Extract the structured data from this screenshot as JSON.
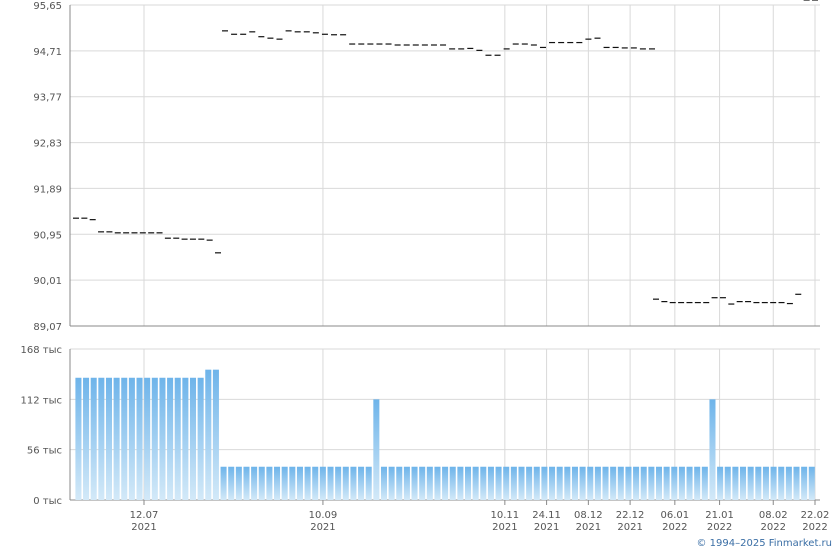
{
  "footer": "© 1994–2025 Finmarket.ru",
  "colors": {
    "price": "#111111",
    "volume_top": "#6eb4ea",
    "volume_bottom": "#d3e9f8",
    "grid": "#d9d9d9",
    "axis": "#888888"
  },
  "chart_data": [
    {
      "type": "line",
      "title": "",
      "x_ticks": [
        {
          "date": "2021-07-12",
          "label": [
            "12.07",
            "2021"
          ]
        },
        {
          "date": "2021-09-10",
          "label": [
            "10.09",
            "2021"
          ]
        },
        {
          "date": "2021-11-10",
          "label": [
            "10.11",
            "2021"
          ]
        },
        {
          "date": "2021-11-24",
          "label": [
            "24.11",
            "2021"
          ]
        },
        {
          "date": "2021-12-08",
          "label": [
            "08.12",
            "2021"
          ]
        },
        {
          "date": "2021-12-22",
          "label": [
            "22.12",
            "2021"
          ]
        },
        {
          "date": "2022-01-06",
          "label": [
            "06.01",
            "2022"
          ]
        },
        {
          "date": "2022-01-21",
          "label": [
            "21.01",
            "2022"
          ]
        },
        {
          "date": "2022-02-08",
          "label": [
            "08.02",
            "2022"
          ]
        },
        {
          "date": "2022-02-22",
          "label": [
            "22.02",
            "2022"
          ]
        }
      ],
      "y_ticks": [
        "95,65",
        "94,71",
        "93,77",
        "92,83",
        "91,89",
        "90,95",
        "90,01",
        "89,07"
      ],
      "ylim": [
        89.07,
        95.65
      ],
      "y_tick_values": [
        95.65,
        94.71,
        93.77,
        92.83,
        91.89,
        90.95,
        90.01,
        89.07
      ],
      "grid": true,
      "series": [
        {
          "values": [
            91.28,
            91.28,
            91.25,
            91.0,
            91.0,
            90.98,
            90.98,
            90.98,
            90.98,
            90.98,
            90.98,
            90.87,
            90.87,
            90.85,
            90.85,
            90.85,
            90.83,
            90.57,
            95.12,
            95.05,
            95.05,
            95.1,
            95.0,
            94.97,
            94.95,
            95.12,
            95.1,
            95.1,
            95.08,
            95.05,
            95.04,
            95.04,
            94.85,
            94.85,
            94.85,
            94.85,
            94.85,
            94.83,
            94.83,
            94.83,
            94.83,
            94.83,
            94.83,
            94.75,
            94.75,
            94.76,
            94.72,
            94.62,
            94.62,
            94.75,
            94.85,
            94.85,
            94.83,
            94.78,
            94.88,
            94.88,
            94.88,
            94.88,
            94.95,
            94.97,
            94.78,
            94.78,
            94.77,
            94.77,
            94.75,
            94.75,
            89.62,
            89.57,
            89.55,
            89.55,
            89.55,
            89.55,
            89.55,
            89.65,
            89.65,
            89.52,
            89.57,
            89.57,
            89.55,
            89.55,
            89.55,
            89.55,
            89.53,
            89.72
          ]
        }
      ]
    },
    {
      "type": "bar",
      "title": "",
      "y_ticks": [
        "168 тыс",
        "112 тыс",
        "56 тыс",
        "0 тыс"
      ],
      "ylim": [
        0,
        168000
      ],
      "y_tick_values": [
        168000,
        112000,
        56000,
        0
      ],
      "grid": true,
      "series": [
        {
          "values": [
            136000,
            136000,
            136000,
            136000,
            136000,
            136000,
            136000,
            136000,
            136000,
            136000,
            136000,
            136000,
            136000,
            136000,
            136000,
            136000,
            136000,
            145000,
            145000,
            37000,
            37000,
            37000,
            37000,
            37000,
            37000,
            37000,
            37000,
            37000,
            37000,
            37000,
            37000,
            37000,
            37000,
            37000,
            37000,
            37000,
            37000,
            37000,
            37000,
            112000,
            37000,
            37000,
            37000,
            37000,
            37000,
            37000,
            37000,
            37000,
            37000,
            37000,
            37000,
            37000,
            37000,
            37000,
            37000,
            37000,
            37000,
            37000,
            37000,
            37000,
            37000,
            37000,
            37000,
            37000,
            37000,
            37000,
            37000,
            37000,
            37000,
            37000,
            37000,
            37000,
            37000,
            37000,
            37000,
            37000,
            37000,
            37000,
            37000,
            37000,
            37000,
            37000,
            37000,
            112000,
            37000,
            37000,
            37000,
            37000,
            37000,
            37000,
            37000,
            37000,
            37000,
            37000,
            37000,
            37000,
            37000
          ]
        }
      ]
    }
  ]
}
